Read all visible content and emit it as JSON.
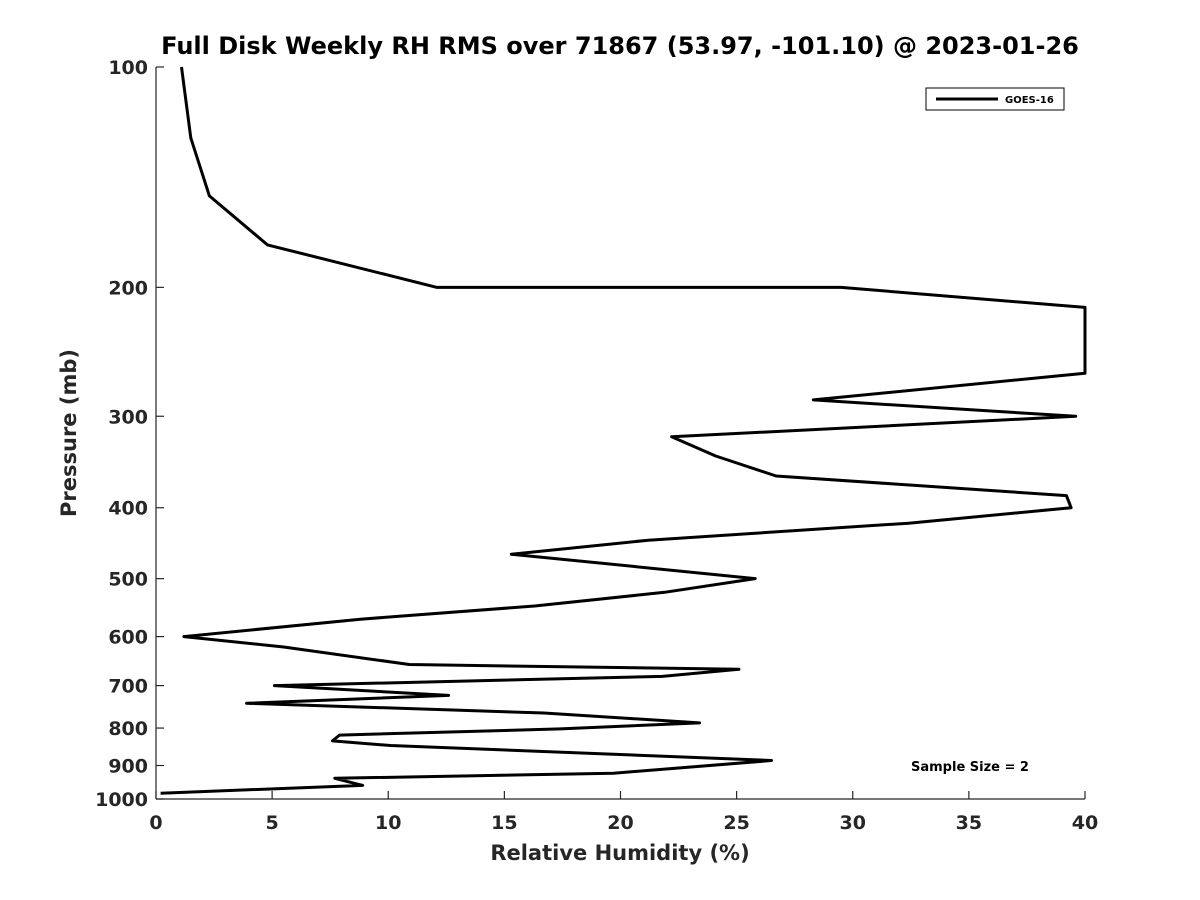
{
  "chart_data": {
    "type": "line",
    "title": "Full Disk Weekly RH RMS over 71867 (53.97, -101.10) @ 2023-01-26",
    "xlabel": "Relative Humidity (%)",
    "ylabel": "Pressure (mb)",
    "xlim": [
      0,
      40
    ],
    "ylim": [
      100,
      1000
    ],
    "yscale": "log",
    "yreversed": true,
    "grid": false,
    "legend_placement": "top-right",
    "x_ticks": [
      "0",
      "5",
      "10",
      "15",
      "20",
      "25",
      "30",
      "35",
      "40"
    ],
    "y_ticks": [
      "100",
      "200",
      "300",
      "400",
      "500",
      "600",
      "700",
      "800",
      "900",
      "1000"
    ],
    "annotation": "Sample Size = 2",
    "line_color": "#000000",
    "series": [
      {
        "name": "GOES-16",
        "points": [
          [
            1.1,
            100
          ],
          [
            1.5,
            125
          ],
          [
            2.3,
            150
          ],
          [
            4.8,
            175
          ],
          [
            12.1,
            200
          ],
          [
            29.5,
            200
          ],
          [
            40.0,
            213
          ],
          [
            40.0,
            262
          ],
          [
            39.5,
            263
          ],
          [
            28.3,
            285
          ],
          [
            39.6,
            300
          ],
          [
            22.2,
            320
          ],
          [
            24.1,
            340
          ],
          [
            26.7,
            362
          ],
          [
            39.2,
            385
          ],
          [
            39.4,
            400
          ],
          [
            32.4,
            420
          ],
          [
            21.2,
            443
          ],
          [
            15.3,
            463
          ],
          [
            25.8,
            500
          ],
          [
            21.9,
            522
          ],
          [
            16.3,
            545
          ],
          [
            8.8,
            568
          ],
          [
            1.2,
            600
          ],
          [
            5.5,
            620
          ],
          [
            10.9,
            655
          ],
          [
            25.1,
            665
          ],
          [
            21.8,
            680
          ],
          [
            5.1,
            700
          ],
          [
            12.6,
            722
          ],
          [
            3.9,
            740
          ],
          [
            16.7,
            763
          ],
          [
            23.4,
            787
          ],
          [
            17.4,
            802
          ],
          [
            7.9,
            818
          ],
          [
            7.6,
            833
          ],
          [
            10.1,
            845
          ],
          [
            26.5,
            886
          ],
          [
            19.7,
            922
          ],
          [
            7.7,
            937
          ],
          [
            8.9,
            958
          ],
          [
            0.2,
            982
          ]
        ]
      }
    ]
  }
}
